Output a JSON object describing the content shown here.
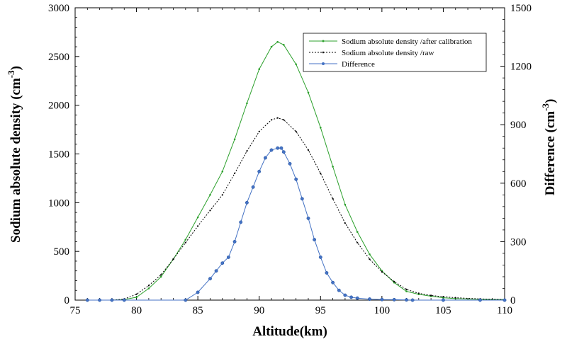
{
  "chart_data": {
    "type": "line",
    "xlabel": "Altitude(km)",
    "ylabel_left": "Sodium absolute density (cm",
    "ylabel_right": "Difference (cm",
    "ylabel_exponent": "-3",
    "ylabel_close": ")",
    "xlim": [
      75,
      110
    ],
    "ylim_left": [
      0,
      3000
    ],
    "ylim_right": [
      0,
      1500
    ],
    "x_ticks": [
      "75",
      "80",
      "85",
      "90",
      "95",
      "100",
      "105",
      "110"
    ],
    "y_left_ticks": [
      "0",
      "500",
      "1000",
      "1500",
      "2000",
      "2500",
      "3000"
    ],
    "y_right_ticks": [
      "0",
      "300",
      "600",
      "900",
      "1200",
      "1500"
    ],
    "legend_position": "top-right",
    "series": [
      {
        "name": "Sodium absolute density /after calibration",
        "axis": "left",
        "color": "#2ca02c",
        "marker": "small-dot",
        "x": [
          76,
          78,
          79,
          80,
          81,
          82,
          83,
          84,
          85,
          86,
          87,
          88,
          89,
          90,
          91,
          91.5,
          92,
          93,
          94,
          95,
          96,
          97,
          98,
          99,
          100,
          101,
          102,
          103,
          104,
          105,
          106,
          108,
          110
        ],
        "y": [
          0,
          0,
          5,
          30,
          120,
          240,
          420,
          620,
          850,
          1080,
          1320,
          1650,
          2020,
          2370,
          2600,
          2650,
          2620,
          2420,
          2130,
          1770,
          1370,
          980,
          700,
          470,
          300,
          180,
          90,
          60,
          40,
          25,
          15,
          8,
          5
        ]
      },
      {
        "name": "Sodium absolute density /raw",
        "axis": "left",
        "color": "#000000",
        "marker": "dash-dot",
        "x": [
          76,
          78,
          79,
          80,
          81,
          82,
          83,
          84,
          85,
          86,
          87,
          88,
          89,
          90,
          91,
          91.5,
          92,
          93,
          94,
          95,
          96,
          97,
          98,
          99,
          100,
          101,
          102,
          103,
          104,
          105,
          106,
          108,
          110
        ],
        "y": [
          0,
          0,
          10,
          60,
          150,
          260,
          420,
          590,
          760,
          920,
          1080,
          1300,
          1530,
          1730,
          1850,
          1870,
          1850,
          1730,
          1540,
          1300,
          1040,
          790,
          590,
          420,
          290,
          190,
          110,
          70,
          48,
          35,
          25,
          12,
          5
        ]
      },
      {
        "name": "Difference",
        "axis": "right",
        "color": "#4472c4",
        "marker": "circle",
        "x": [
          76,
          77,
          78,
          79,
          84,
          85,
          86,
          86.5,
          87,
          87.5,
          88,
          88.5,
          89,
          89.5,
          90,
          90.5,
          91,
          91.5,
          91.8,
          92,
          92.5,
          93,
          93.5,
          94,
          94.5,
          95,
          95.5,
          96,
          96.5,
          97,
          97.5,
          98,
          99,
          100,
          101,
          102,
          102.5,
          105,
          108,
          110
        ],
        "y": [
          0,
          0,
          0,
          0,
          0,
          40,
          110,
          150,
          190,
          220,
          300,
          400,
          500,
          580,
          660,
          730,
          770,
          780,
          780,
          760,
          700,
          620,
          520,
          420,
          310,
          220,
          140,
          90,
          50,
          25,
          15,
          10,
          5,
          3,
          2,
          1,
          0,
          0,
          0,
          0
        ]
      }
    ]
  }
}
